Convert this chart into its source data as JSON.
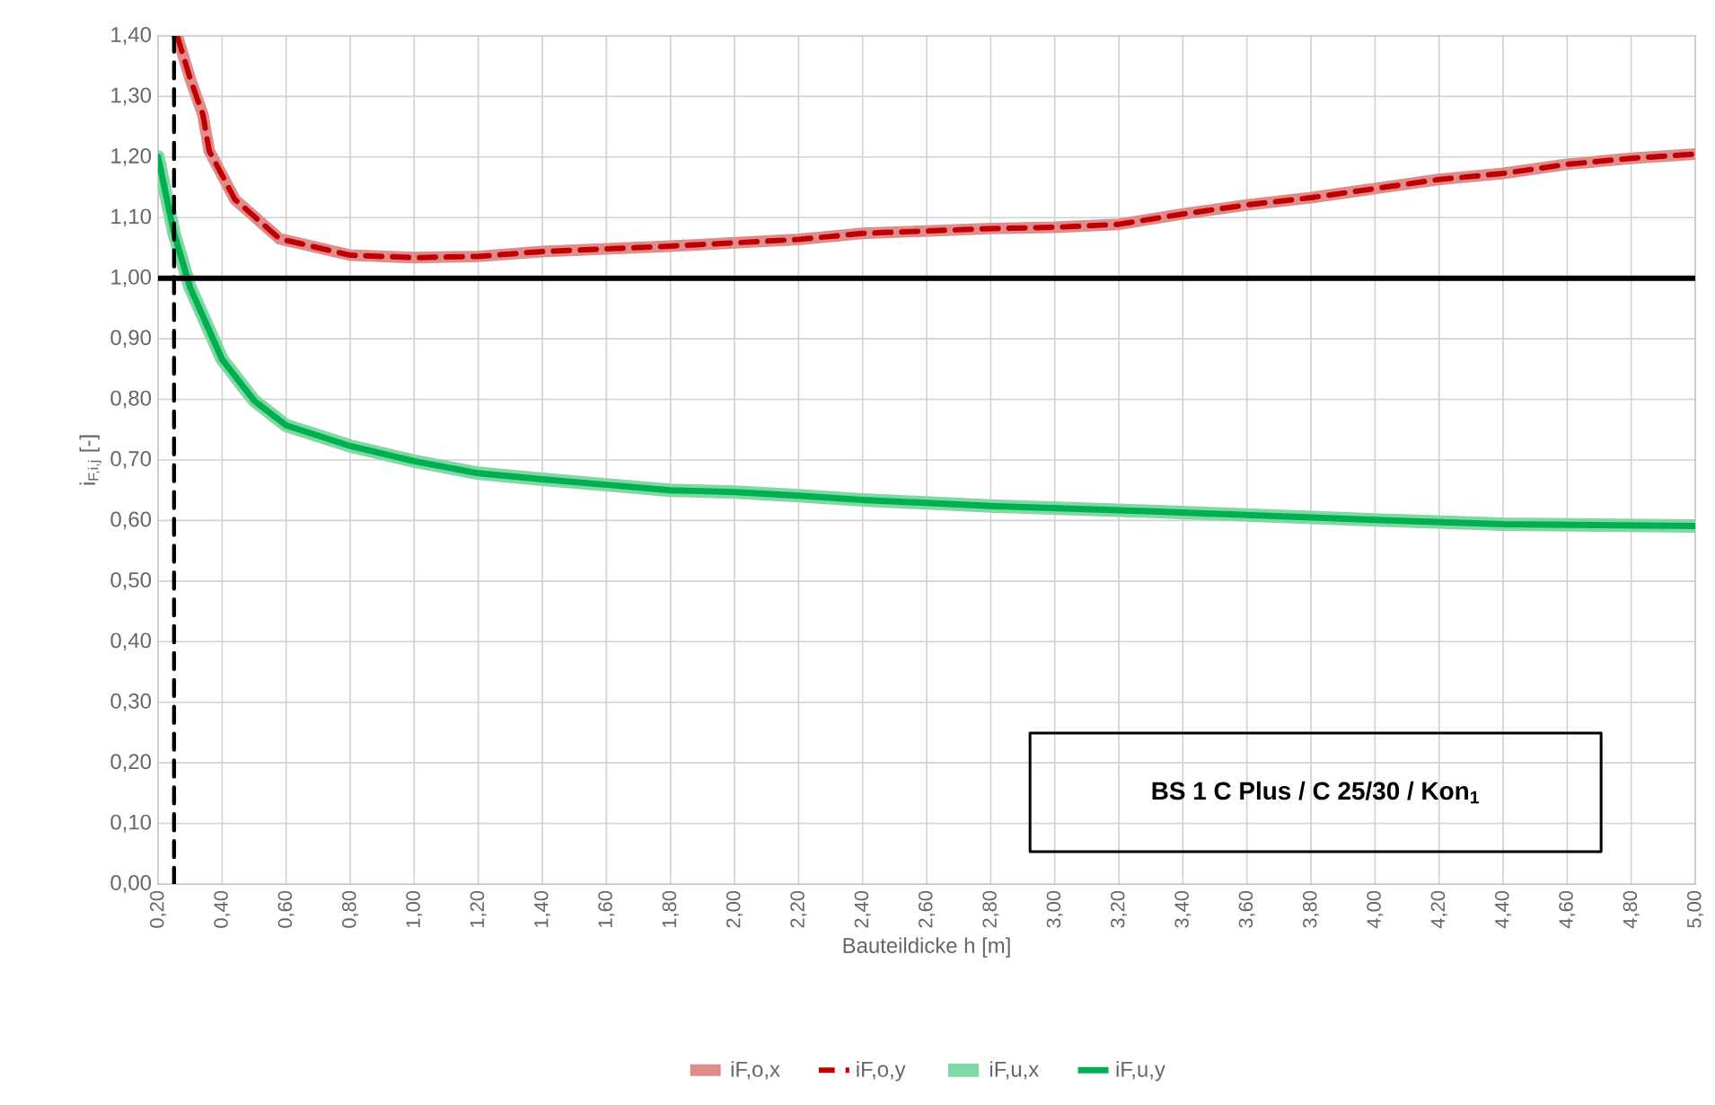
{
  "chart_data": {
    "type": "line",
    "xlabel": "Bauteildicke h [m]",
    "ylabel": "i$_{F,i,j}$ [-]",
    "xlim": [
      0.2,
      5.0
    ],
    "xticks": [
      {
        "value": 0.2,
        "label": "0,20"
      },
      {
        "value": 0.4,
        "label": "0,40"
      },
      {
        "value": 0.6,
        "label": "0,60"
      },
      {
        "value": 0.8,
        "label": "0,80"
      },
      {
        "value": 1.0,
        "label": "1,00"
      },
      {
        "value": 1.2,
        "label": "1,20"
      },
      {
        "value": 1.4,
        "label": "1,40"
      },
      {
        "value": 1.6,
        "label": "1,60"
      },
      {
        "value": 1.8,
        "label": "1,80"
      },
      {
        "value": 2.0,
        "label": "2,00"
      },
      {
        "value": 2.2,
        "label": "2,20"
      },
      {
        "value": 2.4,
        "label": "2,40"
      },
      {
        "value": 2.6,
        "label": "2,60"
      },
      {
        "value": 2.8,
        "label": "2,80"
      },
      {
        "value": 3.0,
        "label": "3,00"
      },
      {
        "value": 3.2,
        "label": "3,20"
      },
      {
        "value": 3.4,
        "label": "3,40"
      },
      {
        "value": 3.6,
        "label": "3,60"
      },
      {
        "value": 3.8,
        "label": "3,80"
      },
      {
        "value": 4.0,
        "label": "4,00"
      },
      {
        "value": 4.2,
        "label": "4,20"
      },
      {
        "value": 4.4,
        "label": "4,40"
      },
      {
        "value": 4.6,
        "label": "4,60"
      },
      {
        "value": 4.8,
        "label": "4,80"
      },
      {
        "value": 5.0,
        "label": "5,00"
      }
    ],
    "ylim": [
      0,
      1.4
    ],
    "yticks": [
      {
        "value": 0,
        "label": "0,00"
      },
      {
        "value": 0.1,
        "label": "0,10"
      },
      {
        "value": 0.2,
        "label": "0,20"
      },
      {
        "value": 0.3,
        "label": "0,30"
      },
      {
        "value": 0.4,
        "label": "0,40"
      },
      {
        "value": 0.5,
        "label": "0,50"
      },
      {
        "value": 0.6,
        "label": "0,60"
      },
      {
        "value": 0.7,
        "label": "0,70"
      },
      {
        "value": 0.8,
        "label": "0,80"
      },
      {
        "value": 0.9,
        "label": "0,90"
      },
      {
        "value": 1.0,
        "label": "1,00"
      },
      {
        "value": 1.1,
        "label": "1,10"
      },
      {
        "value": 1.2,
        "label": "1,20"
      },
      {
        "value": 1.3,
        "label": "1,30"
      },
      {
        "value": 1.4,
        "label": "1,40"
      }
    ],
    "grid": true,
    "legend": "bottom",
    "series": [
      {
        "name": "iF,o,x",
        "color": "#e08c8c",
        "line_style": "solid",
        "x": [
          0.26,
          0.3,
          0.34,
          0.36,
          0.44,
          0.58,
          0.8,
          1.0,
          1.2,
          1.4,
          1.8,
          2.2,
          2.4,
          2.8,
          3.0,
          3.2,
          3.4,
          3.6,
          3.8,
          4.0,
          4.2,
          4.4,
          4.6,
          4.8,
          5.0
        ],
        "values": [
          1.4,
          1.33,
          1.27,
          1.21,
          1.13,
          1.065,
          1.038,
          1.034,
          1.036,
          1.044,
          1.053,
          1.064,
          1.074,
          1.082,
          1.084,
          1.089,
          1.106,
          1.121,
          1.133,
          1.148,
          1.163,
          1.173,
          1.188,
          1.198,
          1.205
        ]
      },
      {
        "name": "iF,o,y",
        "color": "#c00000",
        "line_style": "dashed",
        "x": [
          0.26,
          0.3,
          0.34,
          0.36,
          0.44,
          0.58,
          0.8,
          1.0,
          1.2,
          1.4,
          1.8,
          2.2,
          2.4,
          2.8,
          3.0,
          3.2,
          3.4,
          3.6,
          3.8,
          4.0,
          4.2,
          4.4,
          4.6,
          4.8,
          5.0
        ],
        "values": [
          1.4,
          1.33,
          1.27,
          1.21,
          1.13,
          1.065,
          1.038,
          1.034,
          1.036,
          1.044,
          1.053,
          1.064,
          1.074,
          1.082,
          1.084,
          1.089,
          1.106,
          1.121,
          1.133,
          1.148,
          1.163,
          1.173,
          1.188,
          1.198,
          1.205
        ]
      },
      {
        "name": "iF,u,x",
        "color": "#80d8a4",
        "line_style": "solid",
        "x": [
          0.2,
          0.25,
          0.3,
          0.4,
          0.5,
          0.6,
          0.8,
          1.0,
          1.2,
          1.4,
          1.6,
          1.8,
          2.0,
          2.2,
          2.4,
          2.8,
          3.2,
          3.6,
          4.0,
          4.4,
          5.0
        ],
        "values": [
          1.2,
          1.074,
          0.985,
          0.866,
          0.798,
          0.757,
          0.723,
          0.698,
          0.678,
          0.668,
          0.659,
          0.65,
          0.647,
          0.641,
          0.634,
          0.624,
          0.617,
          0.609,
          0.601,
          0.594,
          0.591
        ]
      },
      {
        "name": "iF,u,y",
        "color": "#00b050",
        "line_style": "solid",
        "x": [
          0.2,
          0.25,
          0.3,
          0.4,
          0.5,
          0.6,
          0.8,
          1.0,
          1.2,
          1.4,
          1.6,
          1.8,
          2.0,
          2.2,
          2.4,
          2.8,
          3.2,
          3.6,
          4.0,
          4.4,
          5.0
        ],
        "values": [
          1.2,
          1.074,
          0.985,
          0.866,
          0.798,
          0.757,
          0.723,
          0.698,
          0.678,
          0.668,
          0.659,
          0.65,
          0.647,
          0.641,
          0.634,
          0.624,
          0.617,
          0.609,
          0.601,
          0.594,
          0.591
        ]
      }
    ],
    "ref_lines": [
      {
        "axis": "y",
        "value": 1.0,
        "color": "#000000",
        "line_style": "solid"
      },
      {
        "axis": "x",
        "value": 0.25,
        "color": "#000000",
        "line_style": "dashed"
      }
    ],
    "annotations": [
      "BS 1 C Plus / C 25/30 / Kon$_{1}$"
    ]
  }
}
